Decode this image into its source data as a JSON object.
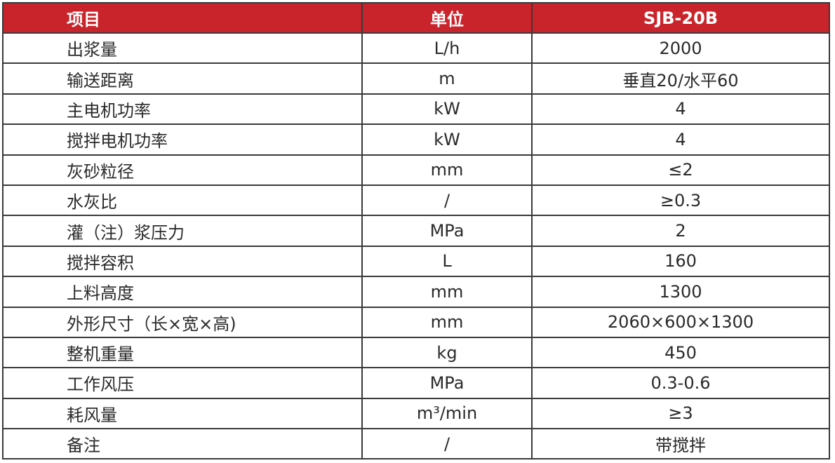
{
  "colors": {
    "header_bg": "#c9242b",
    "header_text": "#ffffff",
    "border": "#3a3a3a"
  },
  "headers": [
    "项目",
    "单位",
    "SJB-20B"
  ],
  "rows": [
    [
      "出浆量",
      "L/h",
      "2000"
    ],
    [
      "输送距离",
      "m",
      "垂直20/水平60"
    ],
    [
      "主电机功率",
      "kW",
      "4"
    ],
    [
      "搅拌电机功率",
      "kW",
      "4"
    ],
    [
      "灰砂粒径",
      "mm",
      "≤2"
    ],
    [
      "水灰比",
      "/",
      "≥0.3"
    ],
    [
      "灌（注）浆压力",
      "MPa",
      "2"
    ],
    [
      "搅拌容积",
      "L",
      "160"
    ],
    [
      "上料高度",
      "mm",
      "1300"
    ],
    [
      "外形尺寸（长×宽×高)",
      "mm",
      "2060×600×1300"
    ],
    [
      "整机重量",
      "kg",
      "450"
    ],
    [
      "工作风压",
      "MPa",
      "0.3-0.6"
    ],
    [
      "耗风量",
      "m³/min",
      "≥3"
    ],
    [
      "备注",
      "/",
      "带搅拌"
    ]
  ]
}
